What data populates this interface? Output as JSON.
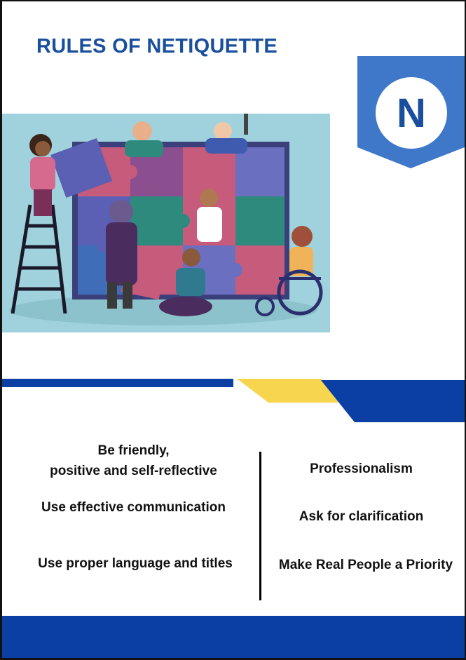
{
  "title": "RULES OF NETIQUETTE",
  "banner": {
    "letter": "N",
    "color": "#3f78c9"
  },
  "colors": {
    "brand_blue": "#1a4f9e",
    "stripe_blue": "#0b3fa3",
    "stripe_yellow": "#f7d54e"
  },
  "illustration": {
    "subject": "people assembling a large jigsaw puzzle together"
  },
  "rules_left": [
    {
      "line1": "Be friendly,",
      "line2": "positive and self-reflective"
    },
    {
      "text": "Use effective communication"
    },
    {
      "text": "Use proper language and titles"
    }
  ],
  "rules_right": [
    {
      "text": "Professionalism"
    },
    {
      "text": "Ask for clarification"
    },
    {
      "text": "Make Real People a Priority"
    }
  ]
}
